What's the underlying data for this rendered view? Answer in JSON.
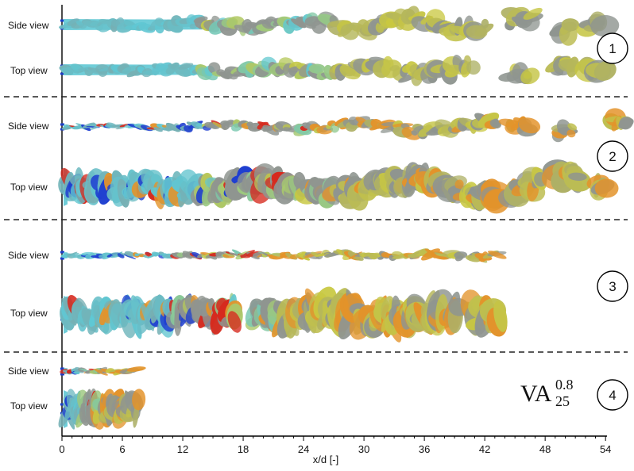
{
  "figure": {
    "view_labels": {
      "side": "Side view",
      "top": "Top view"
    },
    "axis": {
      "title": "x/d [-]",
      "ticks": [
        "0",
        "6",
        "12",
        "18",
        "24",
        "30",
        "36",
        "42",
        "48",
        "54"
      ]
    },
    "cases": [
      {
        "number": "1",
        "panels": [
          "side",
          "top"
        ]
      },
      {
        "number": "2",
        "panels": [
          "side",
          "top"
        ]
      },
      {
        "number": "3",
        "panels": [
          "side",
          "top"
        ]
      },
      {
        "number": "4",
        "panels": [
          "side",
          "top"
        ]
      }
    ],
    "annotation": {
      "base": "VA",
      "sup": "0.8",
      "sub": "25"
    },
    "colors": {
      "cyan": "#5fc8d4",
      "yellow": "#c9c840",
      "gray": "#8f9590",
      "blue": "#1f3fd0",
      "red": "#d62a1e",
      "orange": "#e3932a"
    }
  }
}
